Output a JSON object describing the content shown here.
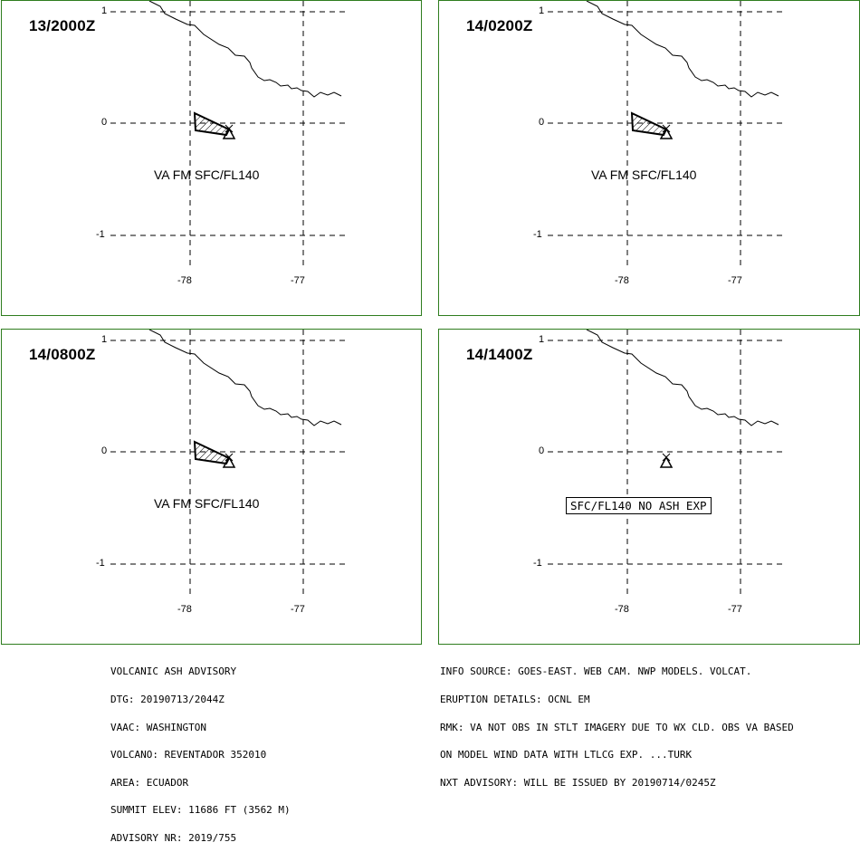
{
  "panels": [
    {
      "time": "13/2000Z",
      "label": "VA FM SFC/FL140",
      "ash": true
    },
    {
      "time": "14/0200Z",
      "label": "VA FM SFC/FL140",
      "ash": true
    },
    {
      "time": "14/0800Z",
      "label": "VA FM SFC/FL140",
      "ash": true
    },
    {
      "time": "14/1400Z",
      "label": "SFC/FL140 NO ASH EXP",
      "ash": false
    }
  ],
  "axes": {
    "lat_labels": [
      "1",
      "0",
      "-1"
    ],
    "lon_labels": [
      "-78",
      "-77"
    ]
  },
  "advisory": {
    "left_lines": [
      "VOLCANIC ASH ADVISORY",
      "DTG: 20190713/2044Z",
      "VAAC: WASHINGTON",
      "VOLCANO: REVENTADOR 352010",
      "AREA: ECUADOR",
      "SUMMIT ELEV: 11686 FT (3562 M)",
      "ADVISORY NR: 2019/755"
    ],
    "right_lines": [
      "INFO SOURCE: GOES-EAST. WEB CAM. NWP MODELS. VOLCAT.",
      "ERUPTION DETAILS: OCNL EM",
      "RMK: VA NOT OBS IN STLT IMAGERY DUE TO WX CLD. OBS VA BASED",
      "ON MODEL WIND DATA WITH LTLCG EXP. ...TURK",
      "NXT ADVISORY: WILL BE ISSUED BY 20190714/0245Z"
    ]
  },
  "colors": {
    "frame": "#2e7d1e",
    "lines": "#000000"
  }
}
